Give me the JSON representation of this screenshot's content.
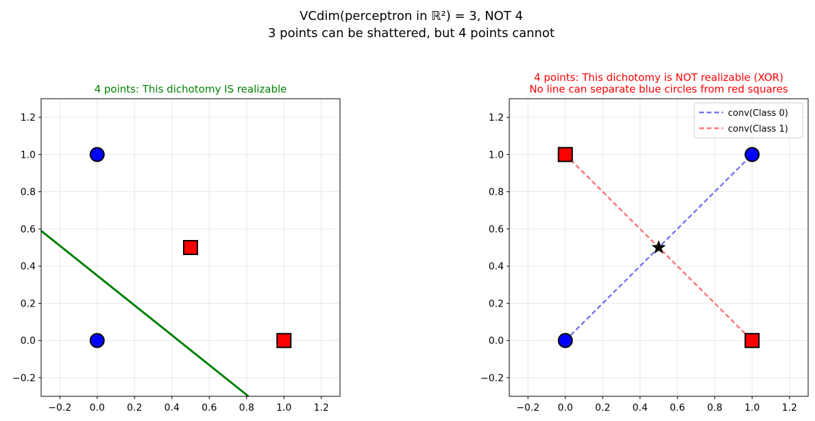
{
  "figure": {
    "suptitle_line1": "VCdim(perceptron in ℝ²) = 3, NOT 4",
    "suptitle_line2": "3 points can be shattered, but 4 points cannot"
  },
  "chart_data": [
    {
      "type": "scatter",
      "title": "4 points: This dichotomy IS realizable",
      "title_color": "#008000",
      "xlim": [
        -0.3,
        1.3
      ],
      "ylim": [
        -0.3,
        1.3
      ],
      "grid": true,
      "xticks": [
        "−0.2",
        "0.0",
        "0.2",
        "0.4",
        "0.6",
        "0.8",
        "1.0",
        "1.2"
      ],
      "yticks": [
        "−0.2",
        "0.0",
        "0.2",
        "0.4",
        "0.6",
        "0.8",
        "1.0",
        "1.2"
      ],
      "tick_values": [
        -0.2,
        0.0,
        0.2,
        0.4,
        0.6,
        0.8,
        1.0,
        1.2
      ],
      "series": [
        {
          "marker": "circle",
          "color": "#0000ff",
          "points": [
            [
              0,
              1
            ],
            [
              0,
              0
            ]
          ]
        },
        {
          "marker": "square",
          "color": "#ff0000",
          "points": [
            [
              0.5,
              0.5
            ],
            [
              1,
              0
            ]
          ]
        }
      ],
      "lines": [
        {
          "color": "#008000",
          "style": "solid",
          "points": [
            [
              -0.3,
              0.59
            ],
            [
              0.81,
              -0.3
            ]
          ]
        }
      ]
    },
    {
      "type": "scatter",
      "title_line1": "4 points: This dichotomy is NOT realizable (XOR)",
      "title_line2": "No line can separate blue circles from red squares",
      "title_color": "#ff0000",
      "xlim": [
        -0.3,
        1.3
      ],
      "ylim": [
        -0.3,
        1.3
      ],
      "grid": true,
      "legend_position": "top-right",
      "xticks": [
        "−0.2",
        "0.0",
        "0.2",
        "0.4",
        "0.6",
        "0.8",
        "1.0",
        "1.2"
      ],
      "yticks": [
        "−0.2",
        "0.0",
        "0.2",
        "0.4",
        "0.6",
        "0.8",
        "1.0",
        "1.2"
      ],
      "tick_values": [
        -0.2,
        0.0,
        0.2,
        0.4,
        0.6,
        0.8,
        1.0,
        1.2
      ],
      "series": [
        {
          "marker": "circle",
          "color": "#0000ff",
          "points": [
            [
              0,
              0
            ],
            [
              1,
              1
            ]
          ]
        },
        {
          "marker": "square",
          "color": "#ff0000",
          "points": [
            [
              0,
              1
            ],
            [
              1,
              0
            ]
          ]
        },
        {
          "marker": "star",
          "color": "#000000",
          "points": [
            [
              0.5,
              0.5
            ]
          ]
        }
      ],
      "lines": [
        {
          "name": "conv(Class 0)",
          "color": "#7777ee",
          "style": "dashed",
          "points": [
            [
              0,
              0
            ],
            [
              1,
              1
            ]
          ]
        },
        {
          "name": "conv(Class 1)",
          "color": "#ff7777",
          "style": "dashed",
          "points": [
            [
              0,
              1
            ],
            [
              1,
              0
            ]
          ]
        }
      ],
      "legend": [
        "conv(Class 0)",
        "conv(Class 1)"
      ]
    }
  ]
}
